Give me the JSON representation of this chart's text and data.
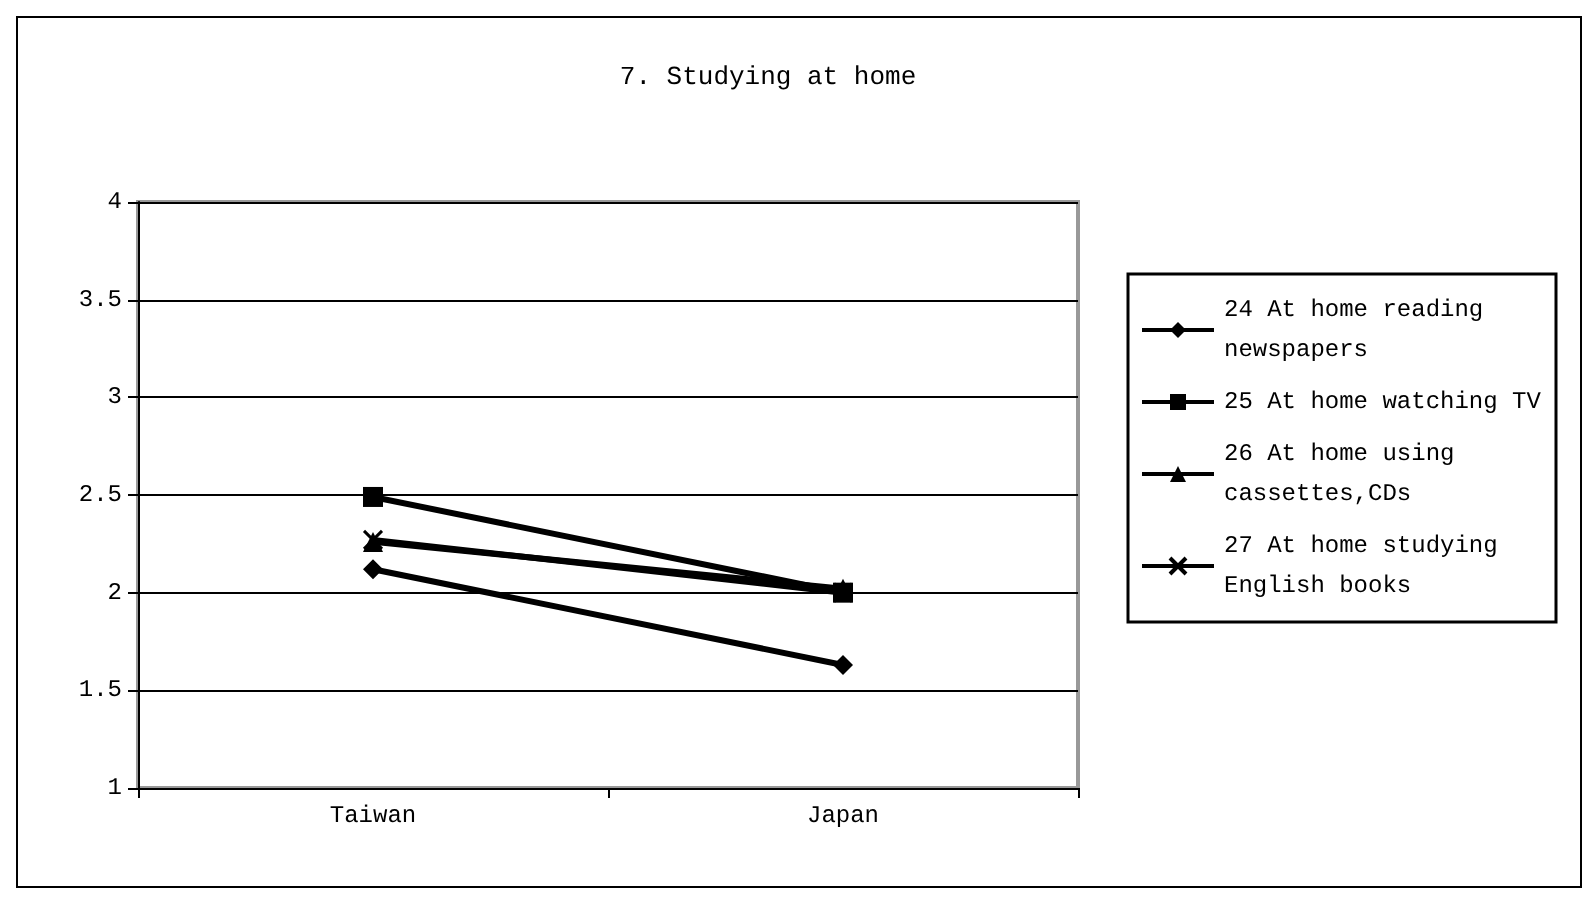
{
  "chart_data": {
    "type": "line",
    "title": "7. Studying at home",
    "categories": [
      "Taiwan",
      "Japan"
    ],
    "series": [
      {
        "name": "24 At home reading newspapers",
        "color": "#000000",
        "marker": "diamond",
        "values": [
          2.12,
          1.63
        ]
      },
      {
        "name": "25 At home watching TV",
        "color": "#000000",
        "marker": "square",
        "values": [
          2.49,
          2.0
        ]
      },
      {
        "name": "26 At home using cassettes,CDs",
        "color": "#000000",
        "marker": "triangle",
        "values": [
          2.26,
          2.02
        ]
      },
      {
        "name": "27 At home studying English books",
        "color": "#000000",
        "marker": "cross",
        "values": [
          2.27,
          2.0
        ]
      }
    ],
    "ylim": [
      1,
      4
    ],
    "yticks": [
      1,
      1.5,
      2,
      2.5,
      3,
      3.5,
      4
    ],
    "grid": "y",
    "legend": "right"
  }
}
